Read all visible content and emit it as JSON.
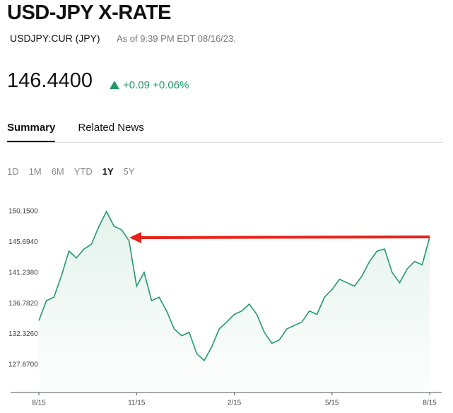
{
  "header": {
    "title": "USD-JPY X-RATE",
    "ticker": "USDJPY:CUR (JPY)",
    "timestamp": "As of 9:39 PM EDT 08/16/23."
  },
  "quote": {
    "price": "146.4400",
    "change": "+0.09",
    "change_percent": "+0.06%"
  },
  "tabs": [
    {
      "label": "Summary",
      "selected": true
    },
    {
      "label": "Related News"
    }
  ],
  "ranges": [
    {
      "label": "1D"
    },
    {
      "label": "1M"
    },
    {
      "label": "6M"
    },
    {
      "label": "YTD"
    },
    {
      "label": "1Y",
      "selected": true
    },
    {
      "label": "5Y"
    }
  ],
  "chart_data": {
    "type": "line",
    "color": "#23996a",
    "categories": [
      "8/15",
      null,
      null,
      null,
      null,
      null,
      null,
      null,
      null,
      null,
      null,
      null,
      null,
      "11/15",
      null,
      null,
      null,
      null,
      null,
      null,
      null,
      null,
      null,
      null,
      null,
      null,
      "2/15",
      null,
      null,
      null,
      null,
      null,
      null,
      null,
      null,
      null,
      null,
      null,
      null,
      "5/15",
      null,
      null,
      null,
      null,
      null,
      null,
      null,
      null,
      null,
      null,
      null,
      null,
      "8/15"
    ],
    "values": [
      134.3,
      137.2,
      137.7,
      140.8,
      144.4,
      143.4,
      144.7,
      145.4,
      148.0,
      150.15,
      148.0,
      147.5,
      145.9,
      139.3,
      141.3,
      137.2,
      137.7,
      135.7,
      133.1,
      132.1,
      132.6,
      129.5,
      128.5,
      130.5,
      133.1,
      134.1,
      135.2,
      135.7,
      136.7,
      135.2,
      132.6,
      131.0,
      131.5,
      133.1,
      133.6,
      134.1,
      135.7,
      135.2,
      137.7,
      138.8,
      140.3,
      139.8,
      139.3,
      140.8,
      142.9,
      144.4,
      144.7,
      141.3,
      139.8,
      141.8,
      142.9,
      142.4,
      146.44
    ],
    "ylim": [
      123.86,
      151.59
    ],
    "yticks": [
      {
        "value": 127.87,
        "label": "127.8700"
      },
      {
        "value": 132.326,
        "label": "132.3260"
      },
      {
        "value": 136.782,
        "label": "136.7820"
      },
      {
        "value": 141.238,
        "label": "141.2380"
      },
      {
        "value": 145.694,
        "label": "145.6940"
      },
      {
        "value": 150.15,
        "label": "150.1500"
      }
    ]
  }
}
